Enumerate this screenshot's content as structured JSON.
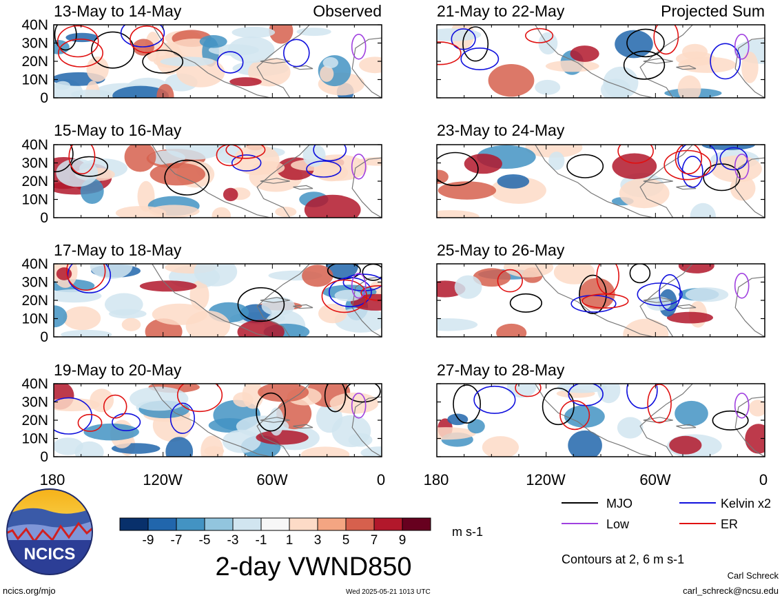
{
  "panel_labels": {
    "observed": "Observed",
    "projected": "Projected Sum"
  },
  "colors": {
    "mjo": "#000000",
    "kelvin": "#1010dd",
    "low": "#a040e0",
    "er": "#e01010",
    "land": "#777777"
  },
  "panels": [
    {
      "title": "13-May to 14-May",
      "column": "observed"
    },
    {
      "title": "15-May to 16-May",
      "column": "observed"
    },
    {
      "title": "17-May to 18-May",
      "column": "observed"
    },
    {
      "title": "19-May to 20-May",
      "column": "observed"
    },
    {
      "title": "21-May to 22-May",
      "column": "projected"
    },
    {
      "title": "23-May to 24-May",
      "column": "projected"
    },
    {
      "title": "25-May to 26-May",
      "column": "projected"
    },
    {
      "title": "27-May to 28-May",
      "column": "projected"
    }
  ],
  "lat_ticks": [
    "40N",
    "30N",
    "20N",
    "10N",
    "0"
  ],
  "lon_ticks": [
    "180",
    "120W",
    "60W",
    "0"
  ],
  "map_extent": {
    "lon_min": -180,
    "lon_max": 0,
    "lat_min": 0,
    "lat_max": 40
  },
  "colorbar": {
    "colors": [
      "#08306b",
      "#2166ac",
      "#4393c3",
      "#92c5de",
      "#d1e5f0",
      "#f7f7f7",
      "#fddbc7",
      "#f4a582",
      "#d6604d",
      "#b2182b",
      "#67001f"
    ],
    "labels": [
      "-9",
      "-7",
      "-5",
      "-3",
      "-1",
      "1",
      "3",
      "5",
      "7",
      "9"
    ],
    "units": "m s-1"
  },
  "variable_title": "2-day VWND850",
  "legend": [
    {
      "label": "MJO",
      "key": "mjo"
    },
    {
      "label": "Kelvin x2",
      "key": "kelvin"
    },
    {
      "label": "Low",
      "key": "low"
    },
    {
      "label": "ER",
      "key": "er"
    }
  ],
  "contour_note": "Contours at 2, 6 m s-1",
  "logo_text": "NCICS",
  "footer": {
    "url": "ncics.org/mjo",
    "timestamp": "Wed 2025-05-21 1013 UTC",
    "author": "Carl Schreck",
    "email": "carl_schreck@ncsu.edu"
  }
}
